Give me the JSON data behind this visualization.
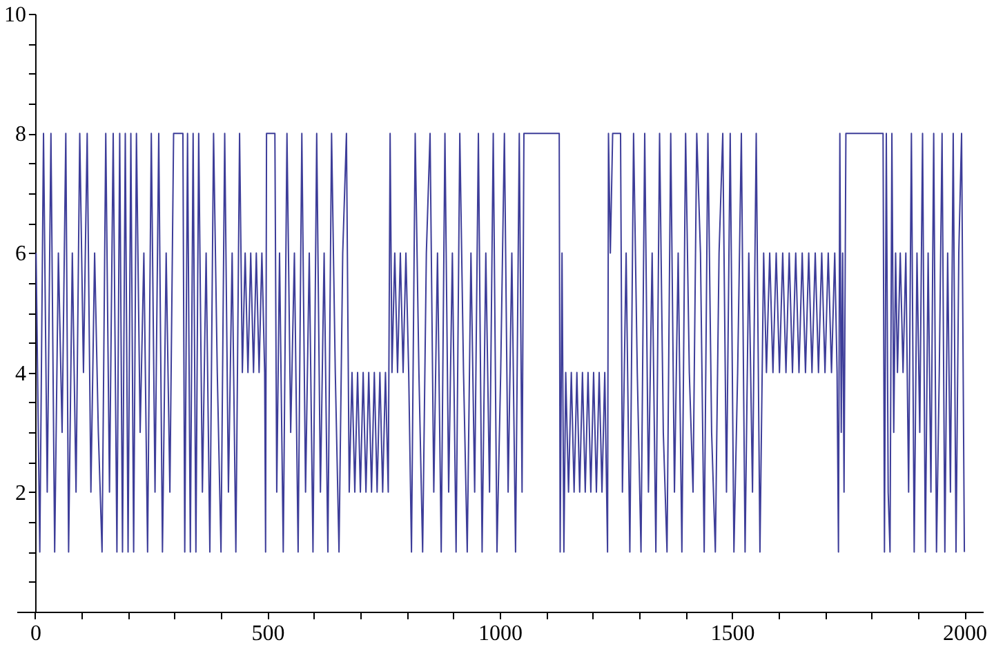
{
  "chart_data": {
    "type": "line",
    "x": [
      2,
      10,
      18,
      26,
      34,
      42,
      50,
      58,
      66,
      72,
      80,
      88,
      96,
      104,
      112,
      120,
      128,
      136,
      144,
      152,
      160,
      168,
      176,
      182,
      188,
      194,
      200,
      206,
      212,
      218,
      226,
      234,
      242,
      250,
      258,
      266,
      274,
      282,
      290,
      298,
      318,
      322,
      328,
      334,
      340,
      346,
      352,
      360,
      368,
      376,
      384,
      392,
      400,
      408,
      416,
      424,
      432,
      440,
      446,
      452,
      458,
      464,
      470,
      476,
      482,
      488,
      494,
      496,
      498,
      516,
      520,
      526,
      534,
      542,
      550,
      558,
      566,
      574,
      582,
      590,
      598,
      606,
      614,
      622,
      630,
      638,
      646,
      654,
      662,
      670,
      676,
      682,
      688,
      694,
      700,
      706,
      712,
      718,
      724,
      730,
      736,
      742,
      748,
      754,
      760,
      764,
      768,
      774,
      780,
      786,
      792,
      798,
      804,
      810,
      818,
      826,
      834,
      842,
      850,
      858,
      866,
      874,
      882,
      890,
      898,
      906,
      914,
      922,
      930,
      938,
      946,
      954,
      962,
      970,
      978,
      986,
      994,
      1002,
      1010,
      1018,
      1026,
      1034,
      1042,
      1048,
      1052,
      1128,
      1130,
      1134,
      1138,
      1142,
      1148,
      1154,
      1160,
      1166,
      1172,
      1178,
      1184,
      1190,
      1196,
      1202,
      1208,
      1214,
      1220,
      1226,
      1232,
      1234,
      1238,
      1243,
      1260,
      1264,
      1272,
      1280,
      1288,
      1296,
      1304,
      1312,
      1320,
      1328,
      1336,
      1344,
      1352,
      1360,
      1368,
      1376,
      1384,
      1392,
      1400,
      1408,
      1416,
      1424,
      1432,
      1440,
      1448,
      1456,
      1464,
      1472,
      1480,
      1488,
      1496,
      1504,
      1512,
      1520,
      1528,
      1536,
      1544,
      1552,
      1560,
      1568,
      1574,
      1581,
      1588,
      1595,
      1602,
      1609,
      1616,
      1623,
      1630,
      1637,
      1644,
      1651,
      1658,
      1665,
      1672,
      1679,
      1686,
      1693,
      1700,
      1707,
      1714,
      1721,
      1726,
      1729,
      1732,
      1735,
      1738,
      1741,
      1745,
      1825,
      1828,
      1832,
      1836,
      1840,
      1844,
      1848,
      1852,
      1856,
      1862,
      1868,
      1874,
      1880,
      1886,
      1892,
      1898,
      1904,
      1910,
      1916,
      1922,
      1928,
      1934,
      1940,
      1946,
      1952,
      1958,
      1964,
      1970,
      1976,
      1982,
      1988,
      1994,
      2000
    ],
    "series": [
      {
        "color": "#3d3d99",
        "values": [
          6,
          1,
          8,
          2,
          8,
          1,
          6,
          3,
          8,
          1,
          6,
          2,
          8,
          4,
          8,
          2,
          6,
          3,
          1,
          8,
          2,
          8,
          1,
          8,
          1,
          8,
          1,
          8,
          1,
          8,
          3,
          6,
          1,
          8,
          2,
          8,
          1,
          6,
          2,
          8,
          8,
          1,
          8,
          1,
          8,
          1,
          8,
          2,
          6,
          1,
          8,
          4,
          1,
          8,
          2,
          6,
          1,
          8,
          4,
          6,
          4,
          6,
          4,
          6,
          4,
          6,
          4,
          1,
          8,
          8,
          2,
          6,
          1,
          8,
          3,
          6,
          1,
          8,
          2,
          6,
          1,
          8,
          2,
          6,
          1,
          8,
          4,
          1,
          6,
          8,
          2,
          4,
          2,
          4,
          2,
          4,
          2,
          4,
          2,
          4,
          2,
          4,
          2,
          4,
          2,
          8,
          4,
          6,
          4,
          6,
          4,
          6,
          4,
          1,
          8,
          4,
          1,
          6,
          8,
          2,
          6,
          1,
          8,
          2,
          6,
          1,
          8,
          4,
          1,
          6,
          2,
          8,
          1,
          6,
          2,
          8,
          1,
          4,
          8,
          2,
          6,
          1,
          8,
          2,
          8,
          8,
          1,
          6,
          1,
          4,
          2,
          4,
          2,
          4,
          2,
          4,
          2,
          4,
          2,
          4,
          2,
          4,
          2,
          4,
          1,
          8,
          6,
          8,
          8,
          2,
          6,
          1,
          8,
          4,
          1,
          8,
          2,
          6,
          1,
          8,
          3,
          1,
          8,
          2,
          6,
          1,
          8,
          4,
          2,
          8,
          6,
          1,
          8,
          3,
          1,
          6,
          8,
          2,
          8,
          1,
          4,
          8,
          1,
          6,
          2,
          8,
          1,
          6,
          4,
          6,
          4,
          6,
          4,
          6,
          4,
          6,
          4,
          6,
          4,
          6,
          4,
          6,
          4,
          6,
          4,
          6,
          4,
          6,
          4,
          6,
          4,
          1,
          8,
          3,
          6,
          2,
          8,
          8,
          1,
          8,
          2,
          1,
          8,
          3,
          6,
          4,
          6,
          4,
          6,
          2,
          8,
          1,
          6,
          3,
          8,
          1,
          6,
          2,
          8,
          1,
          4,
          8,
          1,
          6,
          2,
          8,
          1,
          6,
          8,
          1
        ]
      }
    ],
    "xlim": [
      -40,
      2040
    ],
    "ylim": [
      0,
      10
    ],
    "xticks": [
      0,
      {
        "value": 100,
        "label": null
      },
      {
        "value": 200,
        "label": null
      },
      {
        "value": 300,
        "label": null
      },
      {
        "value": 400,
        "label": null
      },
      500,
      {
        "value": 600,
        "label": null
      },
      {
        "value": 700,
        "label": null
      },
      {
        "value": 800,
        "label": null
      },
      {
        "value": 900,
        "label": null
      },
      1000,
      {
        "value": 1100,
        "label": null
      },
      {
        "value": 1200,
        "label": null
      },
      {
        "value": 1300,
        "label": null
      },
      {
        "value": 1400,
        "label": null
      },
      1500,
      {
        "value": 1600,
        "label": null
      },
      {
        "value": 1700,
        "label": null
      },
      {
        "value": 1800,
        "label": null
      },
      {
        "value": 1900,
        "label": null
      },
      2000
    ],
    "yticks": [
      {
        "value": 0.5,
        "label": null
      },
      {
        "value": 1,
        "label": null
      },
      {
        "value": 1.5,
        "label": null
      },
      2,
      {
        "value": 2.5,
        "label": null
      },
      {
        "value": 3,
        "label": null
      },
      {
        "value": 3.5,
        "label": null
      },
      4,
      {
        "value": 4.5,
        "label": null
      },
      {
        "value": 5,
        "label": null
      },
      {
        "value": 5.5,
        "label": null
      },
      6,
      {
        "value": 6.5,
        "label": null
      },
      {
        "value": 7,
        "label": null
      },
      {
        "value": 7.5,
        "label": null
      },
      8,
      {
        "value": 8.5,
        "label": null
      },
      {
        "value": 9,
        "label": null
      },
      {
        "value": 9.5,
        "label": null
      },
      10
    ],
    "grid": false,
    "marker": "none",
    "line_style": "solid"
  }
}
